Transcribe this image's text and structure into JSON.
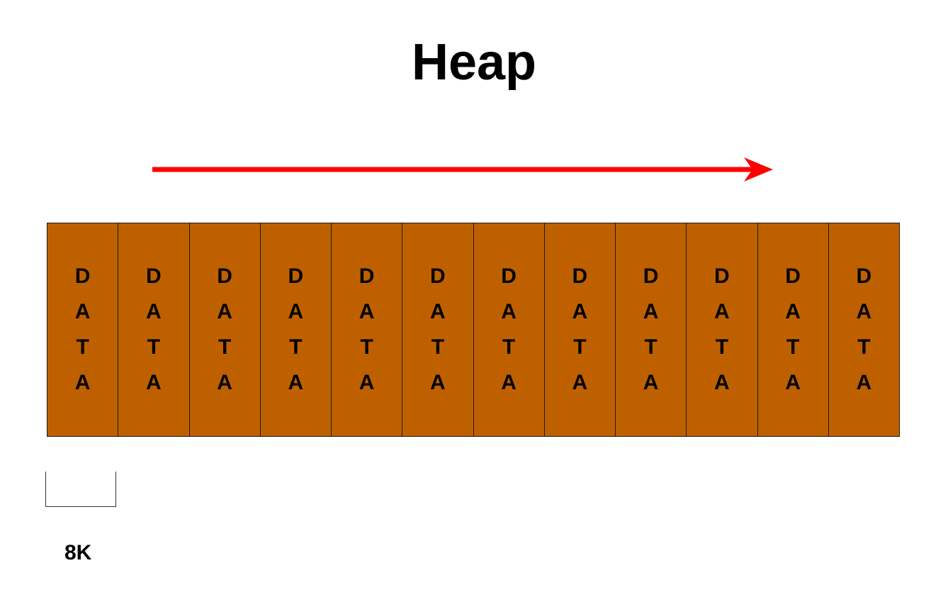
{
  "title": "Heap",
  "direction": {
    "color": "#ff0000",
    "pointing": "right"
  },
  "page_fill_color": "#bf6000",
  "pages": [
    {
      "letters": [
        "D",
        "A",
        "T",
        "A"
      ]
    },
    {
      "letters": [
        "D",
        "A",
        "T",
        "A"
      ]
    },
    {
      "letters": [
        "D",
        "A",
        "T",
        "A"
      ]
    },
    {
      "letters": [
        "D",
        "A",
        "T",
        "A"
      ]
    },
    {
      "letters": [
        "D",
        "A",
        "T",
        "A"
      ]
    },
    {
      "letters": [
        "D",
        "A",
        "T",
        "A"
      ]
    },
    {
      "letters": [
        "D",
        "A",
        "T",
        "A"
      ]
    },
    {
      "letters": [
        "D",
        "A",
        "T",
        "A"
      ]
    },
    {
      "letters": [
        "D",
        "A",
        "T",
        "A"
      ]
    },
    {
      "letters": [
        "D",
        "A",
        "T",
        "A"
      ]
    },
    {
      "letters": [
        "D",
        "A",
        "T",
        "A"
      ]
    },
    {
      "letters": [
        "D",
        "A",
        "T",
        "A"
      ]
    }
  ],
  "page_size_label": "8K"
}
